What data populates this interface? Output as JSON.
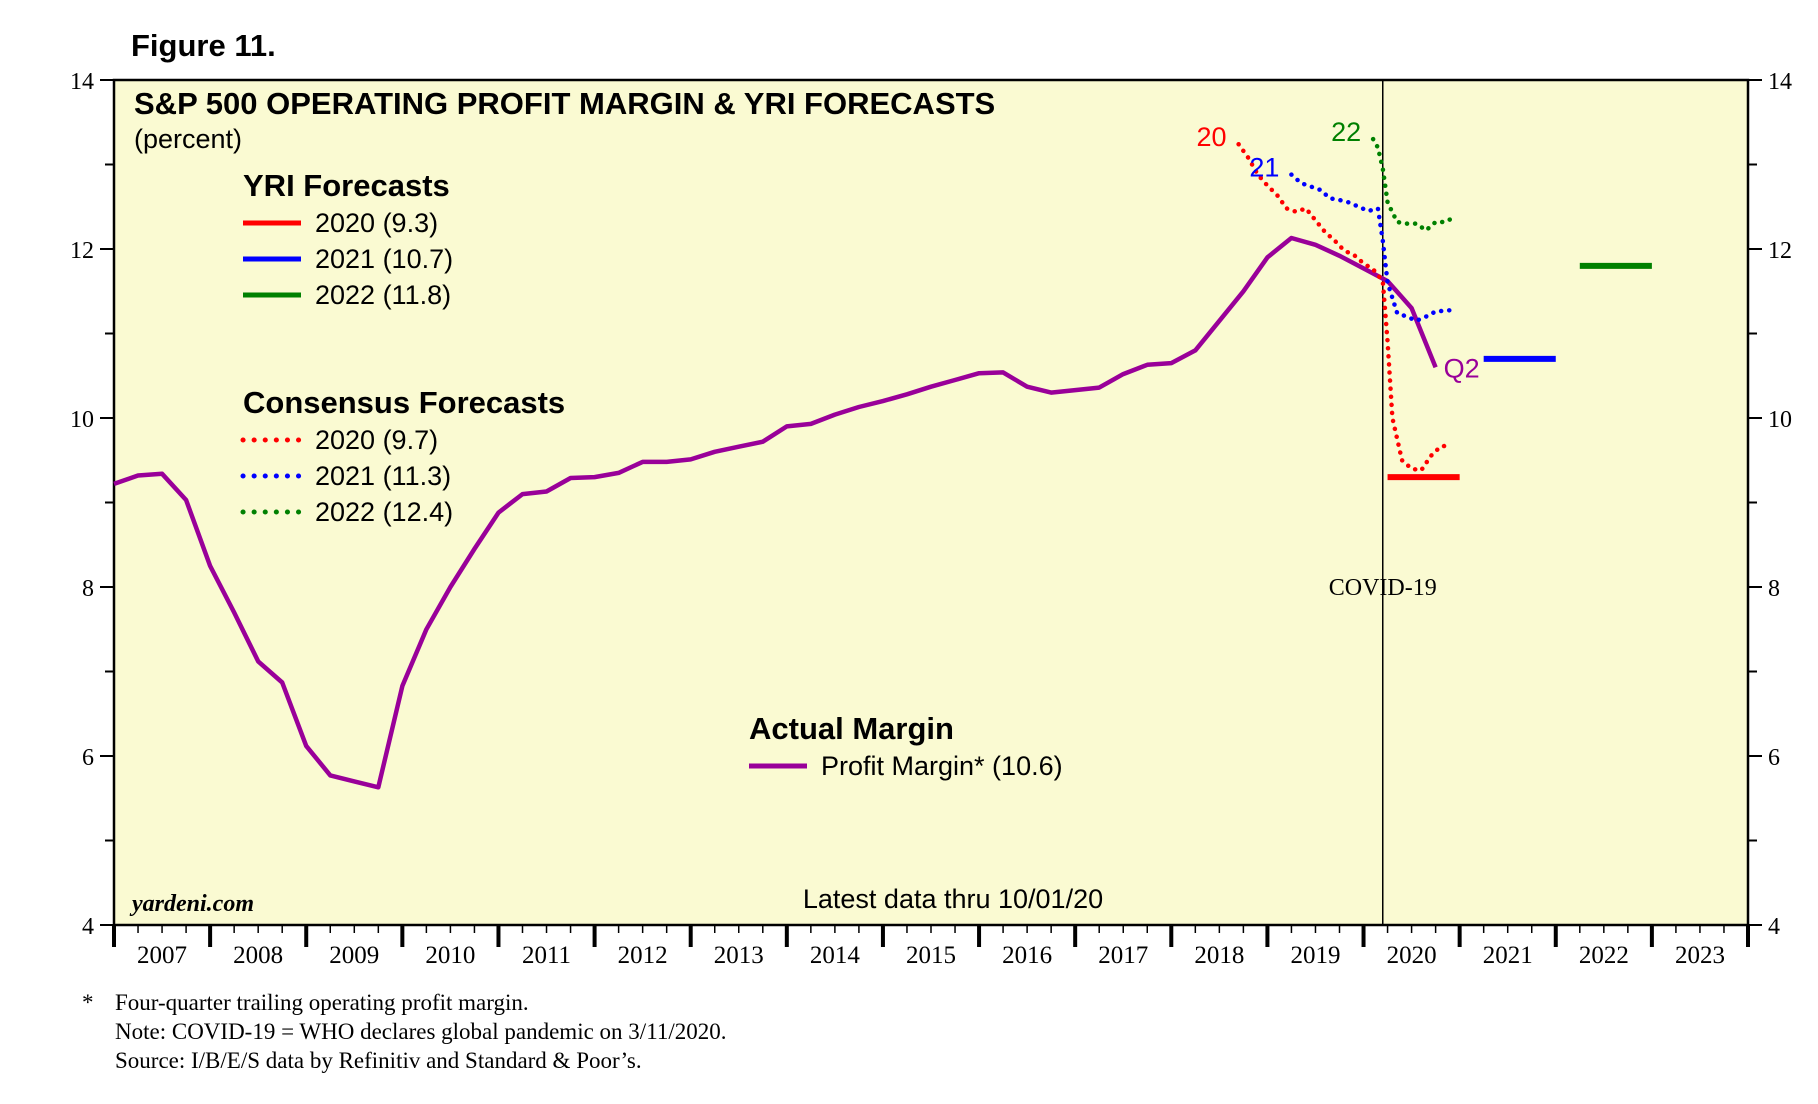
{
  "figure_label": "Figure 11.",
  "footnotes": [
    {
      "marker": "*",
      "text": "Four-quarter trailing operating profit margin."
    },
    {
      "marker": "",
      "text": "Note: COVID-19 = WHO declares global pandemic on 3/11/2020."
    },
    {
      "marker": "",
      "text": "Source: I/B/E/S data by Refinitiv and Standard & Poor’s."
    }
  ],
  "colors": {
    "plot_background": "#FAFAD2",
    "actual": "#990099",
    "y2020": "#FF0000",
    "y2021": "#0000FF",
    "y2022": "#008000"
  },
  "chart_data": {
    "type": "line",
    "title": "S&P 500 OPERATING PROFIT MARGIN & YRI FORECASTS",
    "subtitle": "(percent)",
    "ylim": [
      4,
      14
    ],
    "xlim": [
      2006.5,
      2023.5
    ],
    "y_ticks": [
      4,
      6,
      8,
      10,
      12,
      14
    ],
    "y_ticks_right": [
      4,
      6,
      8,
      10,
      12,
      14
    ],
    "x_tick_labels": [
      "2007",
      "2008",
      "2009",
      "2010",
      "2011",
      "2012",
      "2013",
      "2014",
      "2015",
      "2016",
      "2017",
      "2018",
      "2019",
      "2020",
      "2021",
      "2022",
      "2023"
    ],
    "source_label": "yardeni.com",
    "latest_note": "Latest data thru 10/01/20",
    "covid": {
      "x": 2019.7,
      "label": "COVID-19"
    },
    "legend_yri": {
      "heading": "YRI Forecasts",
      "entries": [
        "2020 (9.3)",
        "2021 (10.7)",
        "2022 (11.8)"
      ]
    },
    "legend_consensus": {
      "heading": "Consensus Forecasts",
      "entries": [
        "2020 (9.7)",
        "2021 (11.3)",
        "2022 (12.4)"
      ]
    },
    "legend_actual": {
      "heading": "Actual Margin",
      "entries": [
        "Profit Margin* (10.6)"
      ]
    },
    "series": [
      {
        "name": "Profit Margin* (10.6)",
        "kind": "actual",
        "end_label": "Q2",
        "points": [
          [
            2006.5,
            9.22
          ],
          [
            2006.75,
            9.32
          ],
          [
            2007.0,
            9.34
          ],
          [
            2007.25,
            9.03
          ],
          [
            2007.5,
            8.25
          ],
          [
            2007.75,
            7.7
          ],
          [
            2008.0,
            7.12
          ],
          [
            2008.25,
            6.87
          ],
          [
            2008.5,
            6.12
          ],
          [
            2008.75,
            5.77
          ],
          [
            2009.0,
            5.7
          ],
          [
            2009.25,
            5.63
          ],
          [
            2009.5,
            6.83
          ],
          [
            2009.75,
            7.5
          ],
          [
            2010.0,
            8.0
          ],
          [
            2010.25,
            8.45
          ],
          [
            2010.5,
            8.88
          ],
          [
            2010.75,
            9.1
          ],
          [
            2011.0,
            9.13
          ],
          [
            2011.25,
            9.29
          ],
          [
            2011.5,
            9.3
          ],
          [
            2011.75,
            9.35
          ],
          [
            2012.0,
            9.48
          ],
          [
            2012.25,
            9.48
          ],
          [
            2012.5,
            9.51
          ],
          [
            2012.75,
            9.6
          ],
          [
            2013.0,
            9.66
          ],
          [
            2013.25,
            9.72
          ],
          [
            2013.5,
            9.9
          ],
          [
            2013.75,
            9.93
          ],
          [
            2014.0,
            10.04
          ],
          [
            2014.25,
            10.13
          ],
          [
            2014.5,
            10.2
          ],
          [
            2014.75,
            10.28
          ],
          [
            2015.0,
            10.37
          ],
          [
            2015.25,
            10.45
          ],
          [
            2015.5,
            10.53
          ],
          [
            2015.75,
            10.54
          ],
          [
            2016.0,
            10.37
          ],
          [
            2016.25,
            10.3
          ],
          [
            2016.5,
            10.33
          ],
          [
            2016.75,
            10.36
          ],
          [
            2017.0,
            10.52
          ],
          [
            2017.25,
            10.63
          ],
          [
            2017.5,
            10.65
          ],
          [
            2017.75,
            10.8
          ],
          [
            2018.0,
            11.15
          ],
          [
            2018.25,
            11.5
          ],
          [
            2018.5,
            11.9
          ],
          [
            2018.75,
            12.13
          ],
          [
            2019.0,
            12.05
          ],
          [
            2019.25,
            11.92
          ],
          [
            2019.5,
            11.77
          ],
          [
            2019.75,
            11.62
          ],
          [
            2020.0,
            11.3
          ],
          [
            2020.25,
            10.6
          ]
        ]
      },
      {
        "name": "Consensus 2020 (9.7)",
        "kind": "consensus",
        "year": "2020",
        "start_label": "20",
        "points": [
          [
            2018.2,
            13.24
          ],
          [
            2018.3,
            13.08
          ],
          [
            2018.4,
            12.88
          ],
          [
            2018.5,
            12.75
          ],
          [
            2018.6,
            12.64
          ],
          [
            2018.7,
            12.48
          ],
          [
            2018.8,
            12.44
          ],
          [
            2018.9,
            12.48
          ],
          [
            2019.0,
            12.34
          ],
          [
            2019.1,
            12.2
          ],
          [
            2019.2,
            12.1
          ],
          [
            2019.3,
            11.98
          ],
          [
            2019.4,
            11.93
          ],
          [
            2019.5,
            11.83
          ],
          [
            2019.6,
            11.76
          ],
          [
            2019.7,
            11.62
          ],
          [
            2019.75,
            10.9
          ],
          [
            2019.8,
            10.0
          ],
          [
            2019.9,
            9.5
          ],
          [
            2020.0,
            9.4
          ],
          [
            2020.1,
            9.38
          ],
          [
            2020.2,
            9.55
          ],
          [
            2020.3,
            9.66
          ],
          [
            2020.4,
            9.68
          ]
        ]
      },
      {
        "name": "Consensus 2021 (11.3)",
        "kind": "consensus",
        "year": "2021",
        "start_label": "21",
        "points": [
          [
            2018.75,
            12.88
          ],
          [
            2018.85,
            12.78
          ],
          [
            2018.95,
            12.74
          ],
          [
            2019.05,
            12.7
          ],
          [
            2019.15,
            12.6
          ],
          [
            2019.25,
            12.58
          ],
          [
            2019.35,
            12.55
          ],
          [
            2019.45,
            12.5
          ],
          [
            2019.55,
            12.45
          ],
          [
            2019.65,
            12.48
          ],
          [
            2019.7,
            12.1
          ],
          [
            2019.75,
            11.6
          ],
          [
            2019.85,
            11.24
          ],
          [
            2019.95,
            11.2
          ],
          [
            2020.05,
            11.15
          ],
          [
            2020.15,
            11.2
          ],
          [
            2020.25,
            11.26
          ],
          [
            2020.35,
            11.27
          ],
          [
            2020.45,
            11.28
          ]
        ]
      },
      {
        "name": "Consensus 2022 (12.4)",
        "kind": "consensus",
        "year": "2022",
        "start_label": "22",
        "points": [
          [
            2019.6,
            13.3
          ],
          [
            2019.65,
            13.2
          ],
          [
            2019.7,
            12.95
          ],
          [
            2019.75,
            12.55
          ],
          [
            2019.85,
            12.32
          ],
          [
            2019.95,
            12.3
          ],
          [
            2020.05,
            12.3
          ],
          [
            2020.15,
            12.22
          ],
          [
            2020.25,
            12.32
          ],
          [
            2020.35,
            12.32
          ],
          [
            2020.45,
            12.38
          ]
        ]
      },
      {
        "name": "YRI 2020 (9.3)",
        "kind": "yri",
        "year": "2020",
        "value": 9.3,
        "x_range": [
          2019.75,
          2020.5
        ]
      },
      {
        "name": "YRI 2021 (10.7)",
        "kind": "yri",
        "year": "2021",
        "value": 10.7,
        "x_range": [
          2020.75,
          2021.5
        ]
      },
      {
        "name": "YRI 2022 (11.8)",
        "kind": "yri",
        "year": "2022",
        "value": 11.8,
        "x_range": [
          2021.75,
          2022.5
        ]
      }
    ]
  }
}
